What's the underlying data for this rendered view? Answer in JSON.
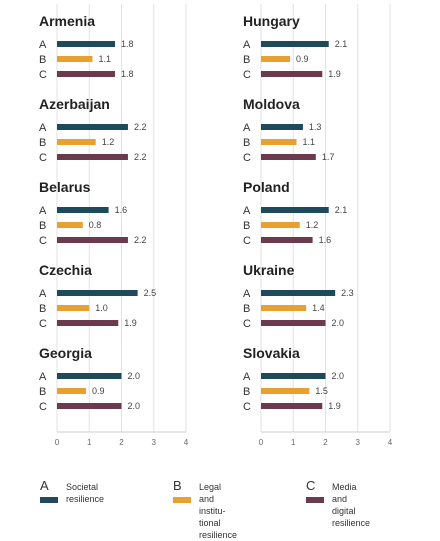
{
  "chart_data": {
    "type": "bar",
    "orientation": "horizontal",
    "xlim": [
      0,
      4
    ],
    "xticks": [
      "0",
      "1",
      "2",
      "3",
      "4"
    ],
    "grid": true,
    "legend_placement": "bottom",
    "colors": {
      "A": "#1e4a5c",
      "B": "#e8a030",
      "C": "#6b3a4f"
    },
    "row_labels": [
      "A",
      "B",
      "C"
    ],
    "panels": [
      {
        "country": "Armenia",
        "values": [
          1.8,
          1.1,
          1.8
        ],
        "labels": [
          "1.8",
          "1.1",
          "1.8"
        ]
      },
      {
        "country": "Azerbaijan",
        "values": [
          2.2,
          1.2,
          2.2
        ],
        "labels": [
          "2.2",
          "1.2",
          "2.2"
        ]
      },
      {
        "country": "Belarus",
        "values": [
          1.6,
          0.8,
          2.2
        ],
        "labels": [
          "1.6",
          "0.8",
          "2.2"
        ]
      },
      {
        "country": "Czechia",
        "values": [
          2.5,
          1.0,
          1.9
        ],
        "labels": [
          "2.5",
          "1.0",
          "1.9"
        ]
      },
      {
        "country": "Georgia",
        "values": [
          2.0,
          0.9,
          2.0
        ],
        "labels": [
          "2.0",
          "0.9",
          "2.0"
        ]
      },
      {
        "country": "Hungary",
        "values": [
          2.1,
          0.9,
          1.9
        ],
        "labels": [
          "2.1",
          "0.9",
          "1.9"
        ]
      },
      {
        "country": "Moldova",
        "values": [
          1.3,
          1.1,
          1.7
        ],
        "labels": [
          "1.3",
          "1.1",
          "1.7"
        ]
      },
      {
        "country": "Poland",
        "values": [
          2.1,
          1.2,
          1.6
        ],
        "labels": [
          "2.1",
          "1.2",
          "1.6"
        ]
      },
      {
        "country": "Ukraine",
        "values": [
          2.3,
          1.4,
          2.0
        ],
        "labels": [
          "2.3",
          "1.4",
          "2.0"
        ]
      },
      {
        "country": "Slovakia",
        "values": [
          2.0,
          1.5,
          1.9
        ],
        "labels": [
          "2.0",
          "1.5",
          "1.9"
        ]
      }
    ],
    "legend": [
      {
        "letter": "A",
        "text": "Societal\nresilience",
        "color": "#1e4a5c"
      },
      {
        "letter": "B",
        "text": "Legal and institu-\ntional resilience",
        "color": "#e8a030"
      },
      {
        "letter": "C",
        "text": "Media and digital\nresilience",
        "color": "#6b3a4f"
      }
    ]
  }
}
